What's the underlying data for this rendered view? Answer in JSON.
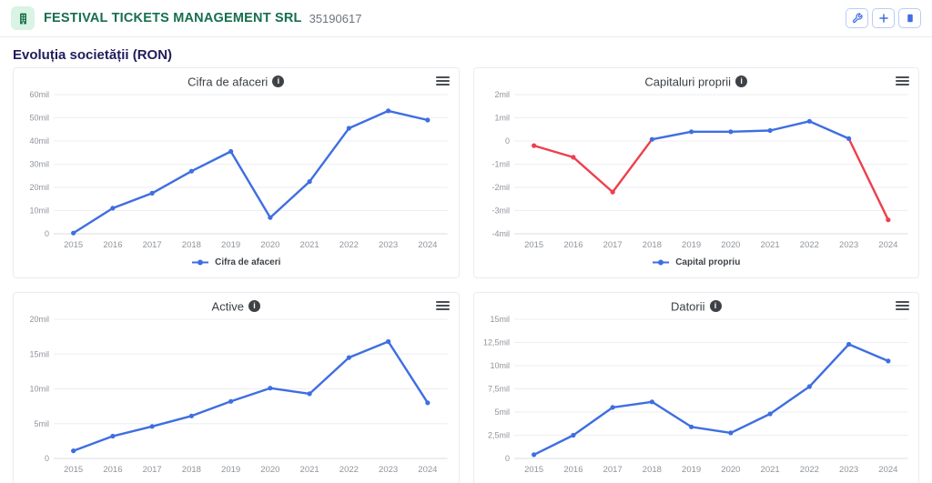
{
  "header": {
    "company_name": "FESTIVAL TICKETS MANAGEMENT SRL",
    "company_id": "35190617",
    "actions": [
      {
        "name": "wrench-button"
      },
      {
        "name": "add-button"
      },
      {
        "name": "notes-button"
      }
    ]
  },
  "page": {
    "heading": "Evoluția societății (RON)"
  },
  "icons": {
    "info_glyph": "i"
  },
  "colors": {
    "line_blue": "#3e6ee1",
    "line_red": "#ee3f4d",
    "brand_green": "#166f4d",
    "heading_navy": "#201d5c"
  },
  "chart_data": [
    {
      "type": "line",
      "title": "Cifra de afaceri",
      "legend": "Cifra de afaceri",
      "unit": "mil RON",
      "x": [
        "2015",
        "2016",
        "2017",
        "2018",
        "2019",
        "2020",
        "2021",
        "2022",
        "2023",
        "2024"
      ],
      "series": [
        {
          "name": "Cifra de afaceri",
          "values": [
            0.3,
            11,
            17.5,
            27,
            35.5,
            7,
            22.5,
            45.5,
            53,
            49
          ]
        }
      ],
      "ylim": [
        0,
        60
      ],
      "yticks": [
        {
          "value": 60,
          "label": "60mil"
        },
        {
          "value": 50,
          "label": "50mil"
        },
        {
          "value": 40,
          "label": "40mil"
        },
        {
          "value": 30,
          "label": "30mil"
        },
        {
          "value": 20,
          "label": "20mil"
        },
        {
          "value": 10,
          "label": "10mil"
        },
        {
          "value": 0,
          "label": "0"
        }
      ],
      "color": "#3e6ee1",
      "grid": true,
      "legend_position": "bottom"
    },
    {
      "type": "line",
      "title": "Capitaluri proprii",
      "legend": "Capital propriu",
      "unit": "mil RON",
      "x": [
        "2015",
        "2016",
        "2017",
        "2018",
        "2019",
        "2020",
        "2021",
        "2022",
        "2023",
        "2024"
      ],
      "series": [
        {
          "name": "Capital propriu",
          "values": [
            -0.2,
            -0.7,
            -2.2,
            0.07,
            0.4,
            0.4,
            0.45,
            0.85,
            0.1,
            -3.4
          ]
        }
      ],
      "ylim": [
        -4,
        2
      ],
      "yticks": [
        {
          "value": 2,
          "label": "2mil"
        },
        {
          "value": 1,
          "label": "1mil"
        },
        {
          "value": 0,
          "label": "0"
        },
        {
          "value": -1,
          "label": "-1mil"
        },
        {
          "value": -2,
          "label": "-2mil"
        },
        {
          "value": -3,
          "label": "-3mil"
        },
        {
          "value": -4,
          "label": "-4mil"
        }
      ],
      "color": "#3e6ee1",
      "negative_color": "#ee3f4d",
      "grid": true,
      "legend_position": "bottom"
    },
    {
      "type": "line",
      "title": "Active",
      "unit": "mil RON",
      "x": [
        "2015",
        "2016",
        "2017",
        "2018",
        "2019",
        "2020",
        "2021",
        "2022",
        "2023",
        "2024"
      ],
      "series": [
        {
          "name": "Active",
          "values": [
            1.1,
            3.2,
            4.6,
            6.1,
            8.2,
            10.1,
            9.3,
            14.5,
            16.8,
            8.0
          ]
        }
      ],
      "ylim": [
        0,
        20
      ],
      "yticks": [
        {
          "value": 20,
          "label": "20mil"
        },
        {
          "value": 15,
          "label": "15mil"
        },
        {
          "value": 10,
          "label": "10mil"
        },
        {
          "value": 5,
          "label": "5mil"
        },
        {
          "value": 0,
          "label": "0"
        }
      ],
      "color": "#3e6ee1",
      "grid": true
    },
    {
      "type": "line",
      "title": "Datorii",
      "unit": "mil RON",
      "x": [
        "2015",
        "2016",
        "2017",
        "2018",
        "2019",
        "2020",
        "2021",
        "2022",
        "2023",
        "2024"
      ],
      "series": [
        {
          "name": "Datorii",
          "values": [
            0.4,
            2.5,
            5.5,
            6.1,
            3.4,
            2.75,
            4.8,
            7.75,
            12.3,
            10.5
          ]
        }
      ],
      "ylim": [
        0,
        15
      ],
      "yticks": [
        {
          "value": 15,
          "label": "15mil"
        },
        {
          "value": 12.5,
          "label": "12,5mil"
        },
        {
          "value": 10,
          "label": "10mil"
        },
        {
          "value": 7.5,
          "label": "7,5mil"
        },
        {
          "value": 5,
          "label": "5mil"
        },
        {
          "value": 2.5,
          "label": "2,5mil"
        },
        {
          "value": 0,
          "label": "0"
        }
      ],
      "color": "#3e6ee1",
      "grid": true
    }
  ]
}
